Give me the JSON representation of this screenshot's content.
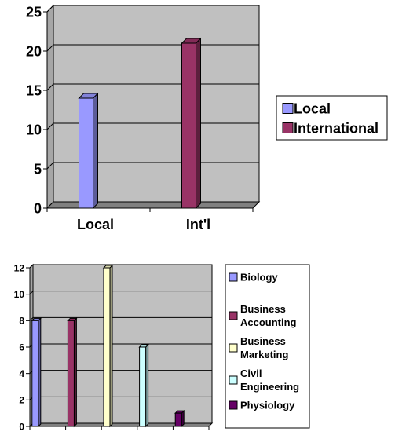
{
  "chart_data": [
    {
      "type": "bar",
      "categories": [
        "Local",
        "Int'l"
      ],
      "series": [
        {
          "name": "Local",
          "values": [
            14,
            null
          ],
          "color": "#9999ff"
        },
        {
          "name": "International",
          "values": [
            null,
            21
          ],
          "color": "#993366"
        }
      ],
      "ylim": [
        0,
        25
      ],
      "yticks": [
        0,
        5,
        10,
        15,
        20,
        25
      ],
      "grid": true,
      "plot_background": "#c0c0c0",
      "legend_position": "right"
    },
    {
      "type": "bar",
      "categories": [
        "",
        "",
        "",
        "",
        ""
      ],
      "series": [
        {
          "name": "Biology",
          "values": [
            8,
            null,
            null,
            null,
            null
          ],
          "color": "#9999ff"
        },
        {
          "name": "Business Accounting",
          "values": [
            null,
            8,
            null,
            null,
            null
          ],
          "color": "#993366"
        },
        {
          "name": "Business Marketing",
          "values": [
            null,
            null,
            12,
            null,
            null
          ],
          "color": "#ffffcc"
        },
        {
          "name": "Civil Engineering",
          "values": [
            null,
            null,
            null,
            6,
            null
          ],
          "color": "#ccffff"
        },
        {
          "name": "Physiology",
          "values": [
            null,
            null,
            null,
            null,
            1
          ],
          "color": "#660066"
        }
      ],
      "ylim": [
        0,
        12
      ],
      "yticks": [
        0,
        2,
        4,
        6,
        8,
        10,
        12
      ],
      "grid": true,
      "plot_background": "#c0c0c0",
      "legend_position": "right"
    }
  ]
}
